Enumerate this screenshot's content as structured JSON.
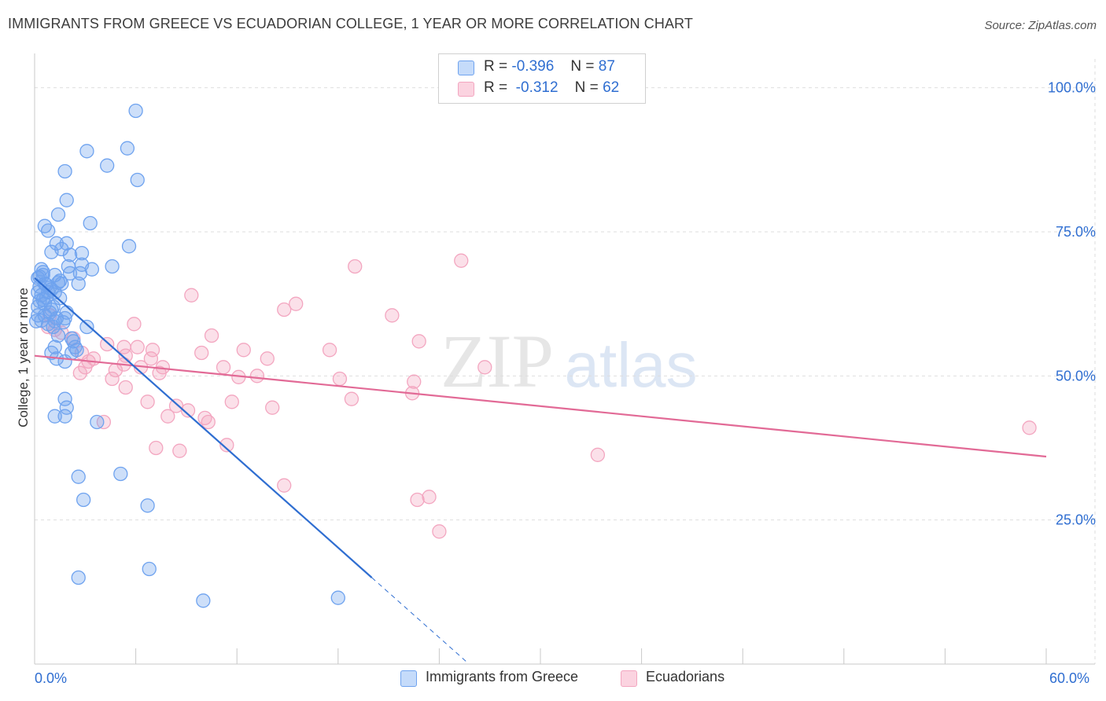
{
  "title": "IMMIGRANTS FROM GREECE VS ECUADORIAN COLLEGE, 1 YEAR OR MORE CORRELATION CHART",
  "source": "Source: ZipAtlas.com",
  "watermark": {
    "zip": "ZIP",
    "atlas": "atlas"
  },
  "legend": {
    "rows": [
      {
        "r_label": "R =",
        "r_value": "-0.396",
        "n_label": "N =",
        "n_value": "87"
      },
      {
        "r_label": "R =",
        "r_value": "-0.312",
        "n_label": "N =",
        "n_value": "62"
      }
    ]
  },
  "chart_data": {
    "type": "scatter",
    "title": "IMMIGRANTS FROM GREECE VS ECUADORIAN COLLEGE, 1 YEAR OR MORE CORRELATION CHART",
    "xlabel": "",
    "ylabel": "College, 1 year or more",
    "xlim": [
      0,
      60
    ],
    "ylim": [
      0,
      105
    ],
    "x_tick_labels": [
      "0.0%",
      "60.0%"
    ],
    "y_ticks": [
      25,
      50,
      75,
      100
    ],
    "y_tick_labels": [
      "25.0%",
      "50.0%",
      "75.0%",
      "100.0%"
    ],
    "grid": true,
    "colors": {
      "greece": "#6fa3ef",
      "greece_line": "#2f6ed1",
      "ecuador": "#f3a6c0",
      "ecuador_line": "#e26a96",
      "axis_text": "#2f6ed1"
    },
    "series": [
      {
        "name": "Immigrants from Greece",
        "r": -0.396,
        "n": 87,
        "trend": {
          "x0": 0.0,
          "y0": 67.0,
          "x1": 20.0,
          "y1": 15.0,
          "dash_to_x": 25.7
        },
        "points": [
          [
            6.0,
            96.0
          ],
          [
            3.1,
            89.0
          ],
          [
            5.5,
            89.5
          ],
          [
            4.3,
            86.5
          ],
          [
            1.8,
            85.5
          ],
          [
            6.1,
            84.0
          ],
          [
            1.9,
            80.5
          ],
          [
            1.4,
            78.0
          ],
          [
            3.3,
            76.5
          ],
          [
            0.6,
            76.0
          ],
          [
            0.8,
            75.2
          ],
          [
            1.3,
            73.0
          ],
          [
            1.9,
            73.0
          ],
          [
            5.6,
            72.5
          ],
          [
            1.0,
            71.5
          ],
          [
            1.6,
            72.0
          ],
          [
            2.1,
            71.0
          ],
          [
            2.8,
            71.3
          ],
          [
            0.4,
            68.5
          ],
          [
            2.0,
            69.0
          ],
          [
            2.8,
            69.3
          ],
          [
            3.4,
            68.5
          ],
          [
            4.6,
            69.0
          ],
          [
            0.5,
            68.0
          ],
          [
            1.2,
            67.5
          ],
          [
            2.7,
            67.8
          ],
          [
            0.2,
            67.0
          ],
          [
            0.6,
            66.0
          ],
          [
            1.5,
            66.5
          ],
          [
            0.3,
            65.5
          ],
          [
            1.0,
            65.0
          ],
          [
            1.6,
            66.0
          ],
          [
            2.6,
            66.0
          ],
          [
            0.4,
            64.0
          ],
          [
            0.8,
            64.5
          ],
          [
            0.3,
            63.0
          ],
          [
            1.5,
            63.5
          ],
          [
            0.2,
            62.0
          ],
          [
            1.1,
            62.0
          ],
          [
            1.0,
            61.5
          ],
          [
            0.6,
            60.5
          ],
          [
            1.3,
            60.0
          ],
          [
            1.8,
            60.0
          ],
          [
            0.1,
            59.5
          ],
          [
            0.8,
            59.0
          ],
          [
            1.2,
            59.5
          ],
          [
            3.1,
            58.5
          ],
          [
            1.4,
            57.0
          ],
          [
            2.2,
            56.5
          ],
          [
            2.4,
            55.0
          ],
          [
            1.2,
            55.0
          ],
          [
            2.5,
            54.5
          ],
          [
            1.0,
            54.0
          ],
          [
            2.2,
            54.0
          ],
          [
            1.3,
            53.0
          ],
          [
            1.8,
            52.5
          ],
          [
            1.8,
            46.0
          ],
          [
            1.9,
            44.5
          ],
          [
            1.2,
            43.0
          ],
          [
            1.8,
            43.0
          ],
          [
            3.7,
            42.0
          ],
          [
            2.6,
            32.5
          ],
          [
            5.1,
            33.0
          ],
          [
            2.9,
            28.5
          ],
          [
            6.7,
            27.5
          ],
          [
            6.8,
            16.5
          ],
          [
            2.6,
            15.0
          ],
          [
            10.0,
            11.0
          ],
          [
            18.0,
            11.5
          ],
          [
            0.3,
            67.2
          ],
          [
            0.7,
            65.8
          ],
          [
            1.4,
            66.2
          ],
          [
            0.5,
            63.2
          ],
          [
            1.9,
            61.0
          ],
          [
            0.9,
            61.0
          ],
          [
            0.4,
            59.6
          ],
          [
            0.6,
            62.5
          ],
          [
            2.3,
            56.0
          ],
          [
            1.1,
            58.5
          ],
          [
            0.2,
            64.5
          ],
          [
            0.9,
            65.3
          ],
          [
            1.7,
            59.3
          ],
          [
            0.5,
            67.5
          ],
          [
            0.2,
            60.5
          ],
          [
            1.2,
            64.5
          ],
          [
            2.1,
            67.8
          ],
          [
            0.7,
            63.6
          ]
        ]
      },
      {
        "name": "Ecuadorians",
        "r": -0.312,
        "n": 62,
        "trend": {
          "x0": 0.0,
          "y0": 53.5,
          "x1": 60.0,
          "y1": 36.0
        },
        "points": [
          [
            25.3,
            70.0
          ],
          [
            19.0,
            69.0
          ],
          [
            9.3,
            64.0
          ],
          [
            15.5,
            62.5
          ],
          [
            14.8,
            61.5
          ],
          [
            21.2,
            60.5
          ],
          [
            5.9,
            59.0
          ],
          [
            0.8,
            58.5
          ],
          [
            10.5,
            57.0
          ],
          [
            22.8,
            56.0
          ],
          [
            1.2,
            58.0
          ],
          [
            2.3,
            56.5
          ],
          [
            6.1,
            55.0
          ],
          [
            4.3,
            55.5
          ],
          [
            5.3,
            55.0
          ],
          [
            7.0,
            54.5
          ],
          [
            9.9,
            54.0
          ],
          [
            12.4,
            54.5
          ],
          [
            17.5,
            54.5
          ],
          [
            5.4,
            53.5
          ],
          [
            3.5,
            53.0
          ],
          [
            6.9,
            53.0
          ],
          [
            13.8,
            53.0
          ],
          [
            3.2,
            52.5
          ],
          [
            5.3,
            52.0
          ],
          [
            6.3,
            51.5
          ],
          [
            7.6,
            51.5
          ],
          [
            11.2,
            51.5
          ],
          [
            26.7,
            51.5
          ],
          [
            7.4,
            50.5
          ],
          [
            2.7,
            50.5
          ],
          [
            4.6,
            49.5
          ],
          [
            12.1,
            49.8
          ],
          [
            13.2,
            50.0
          ],
          [
            18.1,
            49.5
          ],
          [
            22.5,
            49.0
          ],
          [
            5.4,
            48.0
          ],
          [
            22.4,
            47.0
          ],
          [
            18.8,
            46.0
          ],
          [
            6.7,
            45.5
          ],
          [
            11.7,
            45.5
          ],
          [
            8.4,
            44.8
          ],
          [
            14.1,
            44.5
          ],
          [
            9.1,
            44.0
          ],
          [
            7.9,
            43.0
          ],
          [
            10.1,
            42.7
          ],
          [
            10.3,
            42.0
          ],
          [
            4.1,
            42.0
          ],
          [
            59.0,
            41.0
          ],
          [
            11.4,
            38.0
          ],
          [
            7.2,
            37.5
          ],
          [
            8.6,
            37.0
          ],
          [
            33.4,
            36.3
          ],
          [
            14.8,
            31.0
          ],
          [
            23.4,
            29.0
          ],
          [
            22.7,
            28.5
          ],
          [
            24.0,
            23.0
          ],
          [
            1.6,
            57.5
          ],
          [
            0.9,
            60.5
          ],
          [
            2.8,
            54.0
          ],
          [
            4.8,
            51.0
          ],
          [
            3.0,
            51.5
          ]
        ]
      }
    ]
  },
  "bottom_legend": {
    "items": [
      {
        "label": "Immigrants from Greece"
      },
      {
        "label": "Ecuadorians"
      }
    ]
  }
}
